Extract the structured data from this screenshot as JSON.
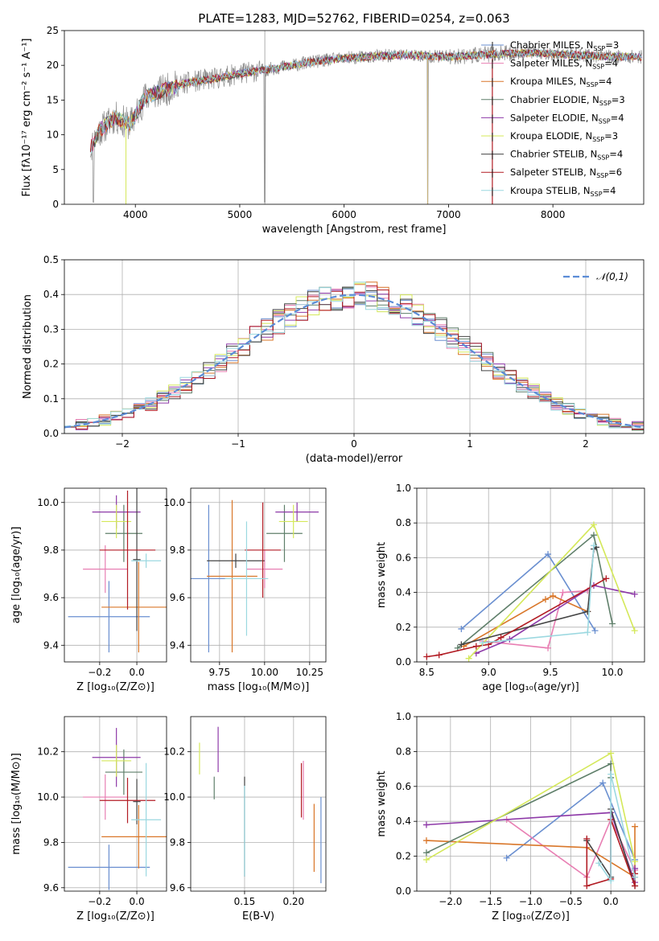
{
  "title": "PLATE=1283, MJD=52762, FIBERID=0254, z=0.063",
  "series_names": [
    "Chabrier MILES",
    "Salpeter MILES",
    "Kroupa MILES",
    "Chabrier ELODIE",
    "Salpeter ELODIE",
    "Kroupa ELODIE",
    "Chabrier STELIB",
    "Salpeter STELIB",
    "Kroupa STELIB"
  ],
  "nssp": [
    3,
    4,
    4,
    3,
    4,
    3,
    4,
    6,
    4
  ],
  "colors": [
    "#6a8fd0",
    "#e87fb3",
    "#d9772a",
    "#5f7f6a",
    "#8e3aa8",
    "#d4e85a",
    "#444444",
    "#b21c24",
    "#9bd8e0"
  ],
  "chart_data": [
    {
      "id": "spectrum",
      "type": "line",
      "xlabel": "wavelength [Angstrom, rest frame]",
      "ylabel": "Flux [fλ10⁻¹⁷ erg cm⁻² s⁻¹ A⁻¹]",
      "xlim": [
        3320,
        8870
      ],
      "ylim": [
        0,
        25
      ],
      "xticks": [
        4000,
        5000,
        6000,
        7000,
        8000
      ],
      "yticks": [
        0,
        5,
        10,
        15,
        20,
        25
      ],
      "x_range_data": [
        3570,
        8850
      ],
      "continuum": [
        [
          3570,
          8.0
        ],
        [
          3650,
          10.5
        ],
        [
          3800,
          12.5
        ],
        [
          3950,
          11.5
        ],
        [
          4100,
          15.5
        ],
        [
          4300,
          16.5
        ],
        [
          4500,
          17.5
        ],
        [
          4800,
          18.2
        ],
        [
          5000,
          18.8
        ],
        [
          5300,
          19.5
        ],
        [
          5700,
          20.5
        ],
        [
          6000,
          21.0
        ],
        [
          6300,
          21.3
        ],
        [
          6600,
          21.5
        ],
        [
          7000,
          21.2
        ],
        [
          7400,
          21.6
        ],
        [
          7800,
          21.8
        ],
        [
          8200,
          21.5
        ],
        [
          8500,
          21.3
        ],
        [
          8850,
          21.2
        ]
      ],
      "legend_position": "upper right"
    },
    {
      "id": "residuals",
      "type": "histogram",
      "xlabel": "(data-model)/error",
      "ylabel": "Normed distribution",
      "xlim": [
        -2.5,
        2.5
      ],
      "ylim": [
        0,
        0.5
      ],
      "xticks": [
        -2,
        -1,
        0,
        1,
        2
      ],
      "yticks": [
        0.0,
        0.1,
        0.2,
        0.3,
        0.4,
        0.5
      ],
      "bin_width": 0.1,
      "reference_curve": "N(0,1)",
      "legend": "𝒩(0,1)",
      "grid": true
    },
    {
      "id": "age-Z",
      "type": "errorbar",
      "xlabel": "Z [log₁₀(Z/Z⊙)]",
      "ylabel": "age  [log₁₀(age/yr)]",
      "xlim": [
        -0.39,
        0.16
      ],
      "ylim": [
        9.33,
        10.06
      ],
      "xticks": [
        -0.2,
        0.0
      ],
      "yticks": [
        9.4,
        9.6,
        9.8,
        10.0
      ],
      "points": [
        {
          "x": -0.15,
          "xerr": 0.22,
          "y": 9.52,
          "yerr": 0.15
        },
        {
          "x": -0.17,
          "xerr": 0.12,
          "y": 9.72,
          "yerr": 0.1
        },
        {
          "x": 0.01,
          "xerr": 0.2,
          "y": 9.56,
          "yerr": 0.19
        },
        {
          "x": -0.07,
          "xerr": 0.1,
          "y": 9.87,
          "yerr": 0.12
        },
        {
          "x": -0.11,
          "xerr": 0.13,
          "y": 9.96,
          "yerr": 0.07
        },
        {
          "x": -0.11,
          "xerr": 0.08,
          "y": 9.92,
          "yerr": 0.07
        },
        {
          "x": 0.0,
          "xerr": 0.02,
          "y": 9.76,
          "yerr": 0.3
        },
        {
          "x": -0.05,
          "xerr": 0.15,
          "y": 9.8,
          "yerr": 0.25
        },
        {
          "x": 0.05,
          "xerr": 0.08,
          "y": 9.755,
          "yerr": 0.03
        }
      ]
    },
    {
      "id": "age-mass",
      "type": "errorbar",
      "xlabel": "mass [log₁₀(M/M⊙)]",
      "ylabel": "",
      "xlim": [
        9.59,
        10.34
      ],
      "ylim": [
        9.33,
        10.06
      ],
      "xticks": [
        9.75,
        10.0,
        10.25
      ],
      "yticks": [
        9.4,
        9.6,
        9.8,
        10.0
      ],
      "points": [
        {
          "x": 9.69,
          "xerr": 0.1,
          "y": 9.68,
          "yerr": 0.31
        },
        {
          "x": 10.0,
          "xerr": 0.1,
          "y": 9.72,
          "yerr": 0.08
        },
        {
          "x": 9.82,
          "xerr": 0.14,
          "y": 9.69,
          "yerr": 0.32
        },
        {
          "x": 10.11,
          "xerr": 0.1,
          "y": 9.87,
          "yerr": 0.12
        },
        {
          "x": 10.18,
          "xerr": 0.12,
          "y": 9.96,
          "yerr": 0.04
        },
        {
          "x": 10.16,
          "xerr": 0.08,
          "y": 9.92,
          "yerr": 0.07
        },
        {
          "x": 9.84,
          "xerr": 0.16,
          "y": 9.755,
          "yerr": 0.03
        },
        {
          "x": 9.99,
          "xerr": 0.1,
          "y": 9.8,
          "yerr": 0.2
        },
        {
          "x": 9.9,
          "xerr": 0.12,
          "y": 9.68,
          "yerr": 0.24
        }
      ]
    },
    {
      "id": "weight-age",
      "type": "line",
      "xlabel": "age  [log₁₀(age/yr)]",
      "ylabel": "mass weight",
      "xlim": [
        8.42,
        10.26
      ],
      "ylim": [
        0,
        1
      ],
      "xticks": [
        8.5,
        9.0,
        9.5,
        10.0
      ],
      "yticks": [
        0.0,
        0.2,
        0.4,
        0.6,
        0.8,
        1.0
      ],
      "series": [
        {
          "x": [
            8.78,
            9.48,
            9.86
          ],
          "y": [
            0.19,
            0.62,
            0.18
          ]
        },
        {
          "x": [
            8.95,
            9.48,
            9.6,
            9.8
          ],
          "y": [
            0.12,
            0.08,
            0.4,
            0.41
          ]
        },
        {
          "x": [
            8.8,
            9.46,
            9.52,
            9.8
          ],
          "y": [
            0.09,
            0.36,
            0.38,
            0.29
          ]
        },
        {
          "x": [
            8.75,
            9.85,
            10.0
          ],
          "y": [
            0.08,
            0.73,
            0.22
          ]
        },
        {
          "x": [
            8.9,
            9.17,
            9.85,
            10.18
          ],
          "y": [
            0.05,
            0.13,
            0.44,
            0.39
          ]
        },
        {
          "x": [
            8.84,
            9.85,
            10.18
          ],
          "y": [
            0.02,
            0.79,
            0.18
          ]
        },
        {
          "x": [
            8.78,
            9.8,
            9.85,
            9.87
          ],
          "y": [
            0.1,
            0.29,
            0.65,
            0.66
          ]
        },
        {
          "x": [
            8.5,
            8.6,
            8.9,
            9.0,
            9.1,
            9.95
          ],
          "y": [
            0.03,
            0.04,
            0.09,
            0.1,
            0.14,
            0.48
          ]
        },
        {
          "x": [
            8.95,
            9.8,
            9.85
          ],
          "y": [
            0.11,
            0.17,
            0.67
          ]
        }
      ]
    },
    {
      "id": "mass-Z",
      "type": "errorbar",
      "xlabel": "Z [log₁₀(Z/Z⊙)]",
      "ylabel": "mass [log₁₀(M/M⊙)]",
      "xlim": [
        -0.39,
        0.16
      ],
      "ylim": [
        9.585,
        10.355
      ],
      "xticks": [
        -0.2,
        0.0
      ],
      "yticks": [
        9.6,
        9.8,
        10.0,
        10.2
      ],
      "points": [
        {
          "x": -0.15,
          "xerr": 0.22,
          "y": 9.69,
          "yerr": 0.1
        },
        {
          "x": -0.17,
          "xerr": 0.12,
          "y": 10.0,
          "yerr": 0.1
        },
        {
          "x": 0.01,
          "xerr": 0.2,
          "y": 9.825,
          "yerr": 0.14
        },
        {
          "x": -0.07,
          "xerr": 0.1,
          "y": 10.11,
          "yerr": 0.1
        },
        {
          "x": -0.11,
          "xerr": 0.13,
          "y": 10.175,
          "yerr": 0.13
        },
        {
          "x": -0.11,
          "xerr": 0.08,
          "y": 10.16,
          "yerr": 0.07
        },
        {
          "x": 0.0,
          "xerr": 0.02,
          "y": 9.98,
          "yerr": 0.1
        },
        {
          "x": -0.05,
          "xerr": 0.15,
          "y": 9.985,
          "yerr": 0.1
        },
        {
          "x": 0.05,
          "xerr": 0.08,
          "y": 9.9,
          "yerr": 0.25
        }
      ]
    },
    {
      "id": "mass-EBV",
      "type": "errorbar",
      "xlabel": "E(B-V)",
      "ylabel": "",
      "xlim": [
        0.095,
        0.233
      ],
      "ylim": [
        9.585,
        10.355
      ],
      "xticks": [
        0.15,
        0.2
      ],
      "yticks": [
        9.6,
        9.8,
        10.0,
        10.2
      ],
      "points": [
        {
          "x": 0.228,
          "xerr": 0.0,
          "y": 9.81,
          "yerr": 0.19
        },
        {
          "x": 0.21,
          "xerr": 0.0,
          "y": 10.03,
          "yerr": 0.13
        },
        {
          "x": 0.221,
          "xerr": 0.0,
          "y": 9.82,
          "yerr": 0.15
        },
        {
          "x": 0.119,
          "xerr": 0.0,
          "y": 10.04,
          "yerr": 0.05
        },
        {
          "x": 0.123,
          "xerr": 0.0,
          "y": 10.21,
          "yerr": 0.1
        },
        {
          "x": 0.104,
          "xerr": 0.0,
          "y": 10.17,
          "yerr": 0.07
        },
        {
          "x": 0.15,
          "xerr": 0.0,
          "y": 9.87,
          "yerr": 0.22
        },
        {
          "x": 0.208,
          "xerr": 0.0,
          "y": 10.03,
          "yerr": 0.12
        },
        {
          "x": 0.15,
          "xerr": 0.0,
          "y": 9.85,
          "yerr": 0.2
        }
      ]
    },
    {
      "id": "weight-Z",
      "type": "line",
      "xlabel": "Z [log₁₀(Z/Z⊙)]",
      "ylabel": "mass weight",
      "xlim": [
        -2.42,
        0.42
      ],
      "ylim": [
        0,
        1
      ],
      "xticks": [
        -2.0,
        -1.5,
        -1.0,
        -0.5,
        0.0
      ],
      "yticks": [
        0.0,
        0.2,
        0.4,
        0.6,
        0.8,
        1.0
      ],
      "series": [
        {
          "x": [
            -1.3,
            -0.1,
            0.3
          ],
          "y": [
            0.19,
            0.62,
            0.18
          ]
        },
        {
          "x": [
            -1.3,
            -0.3,
            0.0,
            0.3
          ],
          "y": [
            0.41,
            0.08,
            0.41,
            0.12
          ]
        },
        {
          "x": [
            -2.3,
            -0.3,
            0.3,
            0.3
          ],
          "y": [
            0.29,
            0.25,
            0.08,
            0.37
          ]
        },
        {
          "x": [
            -2.3,
            0.0,
            0.0
          ],
          "y": [
            0.22,
            0.73,
            0.65
          ]
        },
        {
          "x": [
            -2.3,
            0.0,
            0.3,
            0.3
          ],
          "y": [
            0.38,
            0.45,
            0.05,
            0.13
          ]
        },
        {
          "x": [
            -2.3,
            0.0,
            0.3
          ],
          "y": [
            0.18,
            0.79,
            0.17
          ]
        },
        {
          "x": [
            -0.3,
            0.0,
            0.0,
            0.3
          ],
          "y": [
            0.29,
            0.08,
            0.47,
            0.03
          ]
        },
        {
          "x": [
            -0.3,
            -0.3,
            0.0,
            0.0,
            0.3,
            0.3
          ],
          "y": [
            0.3,
            0.03,
            0.07,
            0.41,
            0.03,
            0.1
          ]
        },
        {
          "x": [
            -0.15,
            0.0,
            0.0,
            0.3
          ],
          "y": [
            0.16,
            0.06,
            0.67,
            0.08
          ]
        }
      ]
    }
  ]
}
